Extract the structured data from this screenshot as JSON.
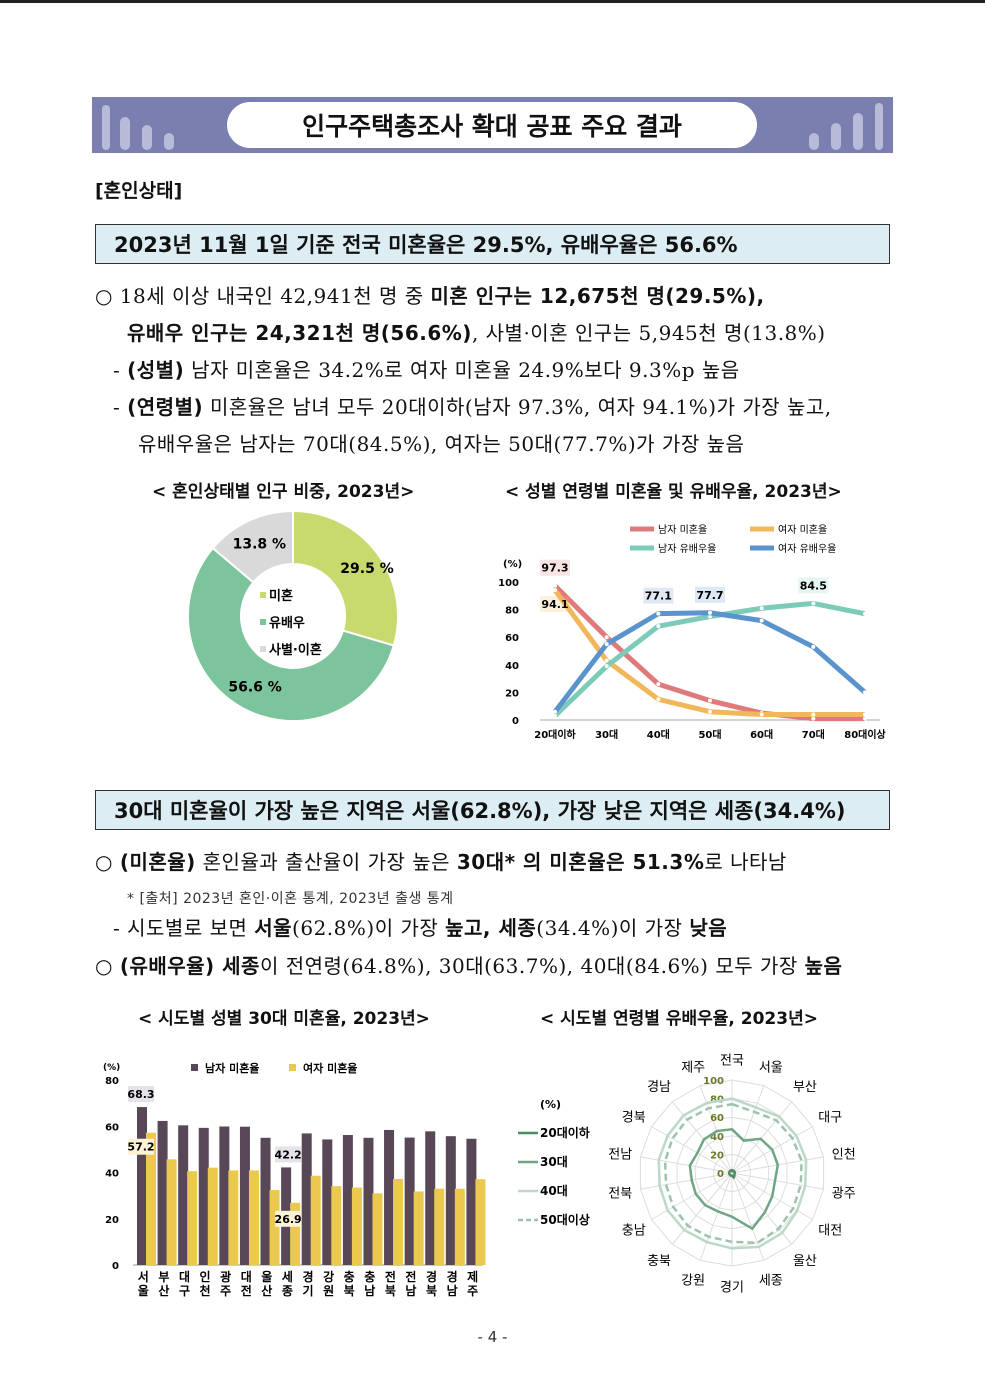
{
  "banner": {
    "title": "인구주택총조사 확대 공표 주요 결과"
  },
  "section": "[혼인상태]",
  "box1": "2023년 11월 1일 기준 전국 미혼율은 29.5%, 유배우율은 56.6%",
  "paras1": [
    [
      {
        "t": "○ 18세 이상 내국인 42,941천 명 중 "
      },
      {
        "t": "미혼 인구는 12,675천 명(29.5%),",
        "b": true
      }
    ],
    [
      {
        "t": "유배우 인구는 24,321천 명(56.6%)",
        "b": true
      },
      {
        "t": ", 사별·이혼 인구는 5,945천 명(13.8%)"
      }
    ],
    [
      {
        "t": "- "
      },
      {
        "t": "(성별)",
        "b": true
      },
      {
        "t": " 남자 미혼율은 34.2%로 여자 미혼율 24.9%보다 9.3%p 높음"
      }
    ],
    [
      {
        "t": "- "
      },
      {
        "t": "(연령별)",
        "b": true
      },
      {
        "t": " 미혼율은 남녀 모두 20대이하(남자 97.3%, 여자 94.1%)가 가장 높고,"
      }
    ],
    [
      {
        "t": "유배우율은 남자는 70대(84.5%), 여자는 50대(77.7%)가 가장 높음"
      }
    ]
  ],
  "box2": "30대 미혼율이 가장 높은 지역은 서울(62.8%), 가장 낮은 지역은 세종(34.4%)",
  "paras2": [
    [
      {
        "t": "○ "
      },
      {
        "t": "(미혼율)",
        "b": true
      },
      {
        "t": " 혼인율과 출산율이 가장 높은 "
      },
      {
        "t": "30대* 의 미혼율은 51.3%",
        "b": true
      },
      {
        "t": "로 나타남"
      }
    ],
    [
      {
        "t": "* [출처] 2023년 혼인·이혼 통계, 2023년 출생 통계",
        "s": true
      }
    ],
    [
      {
        "t": "- 시도별로 보면 "
      },
      {
        "t": "서울",
        "b": true
      },
      {
        "t": "(62.8%)이 가장 "
      },
      {
        "t": "높고, 세종",
        "b": true
      },
      {
        "t": "(34.4%)이 가장 "
      },
      {
        "t": "낮음",
        "b": true
      }
    ],
    [
      {
        "t": "○ "
      },
      {
        "t": "(유배우율) 세종",
        "b": true
      },
      {
        "t": "이 전연령(64.8%), 30대(63.7%), 40대(84.6%) 모두 가장 "
      },
      {
        "t": "높음",
        "b": true
      }
    ]
  ],
  "page_number": "- 4 -",
  "chart_data": [
    {
      "type": "pie",
      "title": "< 혼인상태별 인구 비중, 2023년>",
      "donut": true,
      "slices": [
        {
          "name": "미혼",
          "value": 29.5,
          "label": "29.5 %",
          "color": "#c8da6e"
        },
        {
          "name": "유배우",
          "value": 56.6,
          "label": "56.6 %",
          "color": "#7cc49b"
        },
        {
          "name": "사별·이혼",
          "value": 13.8,
          "label": "13.8 %",
          "color": "#d9d9d9"
        }
      ]
    },
    {
      "type": "line",
      "title": "< 성별 연령별 미혼율 및 유배우율, 2023년>",
      "ylabel": "(%)",
      "ylim": [
        0,
        100
      ],
      "yticks": [
        0,
        20,
        40,
        60,
        80,
        100
      ],
      "categories": [
        "20대이하",
        "30대",
        "40대",
        "50대",
        "60대",
        "70대",
        "80대이상"
      ],
      "series": [
        {
          "name": "남자 미혼율",
          "color": "#e07a7a",
          "values": [
            97.3,
            60,
            26,
            14,
            5,
            1,
            1
          ],
          "labels": {
            "0": "97.3"
          }
        },
        {
          "name": "여자 미혼율",
          "color": "#f0b85a",
          "values": [
            94.1,
            43,
            15,
            6,
            4,
            4,
            4
          ],
          "labels": {
            "0": "94.1"
          }
        },
        {
          "name": "남자 유배우율",
          "color": "#7ccbb8",
          "values": [
            3,
            39,
            68,
            75,
            81,
            84.5,
            77
          ],
          "labels": {
            "5": "84.5"
          }
        },
        {
          "name": "여자 유배우율",
          "color": "#5b93cc",
          "values": [
            6,
            55,
            77.1,
            77.7,
            72,
            53,
            20
          ],
          "labels": {
            "2": "77.1",
            "3": "77.7"
          }
        }
      ]
    },
    {
      "type": "bar",
      "title": "< 시도별 성별 30대 미혼율, 2023년>",
      "ylabel": "(%)",
      "ylim": [
        0,
        80
      ],
      "yticks": [
        0,
        20,
        40,
        60,
        80
      ],
      "categories": [
        "서울",
        "부산",
        "대구",
        "인천",
        "광주",
        "대전",
        "울산",
        "세종",
        "경기",
        "강원",
        "충북",
        "충남",
        "전북",
        "전남",
        "경북",
        "경남",
        "제주"
      ],
      "series": [
        {
          "name": "남자 미혼율",
          "color": "#574757",
          "values": [
            68.3,
            62.3,
            60.4,
            59.3,
            59.9,
            59.8,
            55,
            42.2,
            56.9,
            54.3,
            56.2,
            55,
            58.4,
            55.1,
            57.8,
            55.7,
            54.6
          ],
          "labels": {
            "0": "68.3",
            "7": "42.2"
          }
        },
        {
          "name": "여자 미혼율",
          "color": "#ebc94f",
          "values": [
            57.2,
            45.7,
            40.6,
            42.1,
            40.9,
            40.9,
            32.4,
            26.9,
            38.6,
            34.1,
            33.5,
            31,
            37.2,
            31.8,
            33,
            33,
            37.1
          ],
          "labels": {
            "0": "57.2",
            "7": "26.9"
          }
        }
      ]
    },
    {
      "type": "radar",
      "title": "< 시도별 연령별 유배우율, 2023년>",
      "unit": "(%)",
      "rlim": [
        0,
        100
      ],
      "rticks": [
        0,
        20,
        40,
        60,
        80,
        100
      ],
      "categories": [
        "전국",
        "서울",
        "부산",
        "대구",
        "인천",
        "광주",
        "대전",
        "울산",
        "세종",
        "경기",
        "강원",
        "충북",
        "충남",
        "전북",
        "전남",
        "경북",
        "경남",
        "제주"
      ],
      "series": [
        {
          "name": "20대이하",
          "color": "#4f8a66",
          "dash": false,
          "values": [
            3,
            2,
            3,
            3,
            3,
            3,
            3,
            4,
            5,
            3,
            3,
            3,
            3,
            3,
            3,
            3,
            3,
            3
          ]
        },
        {
          "name": "30대",
          "color": "#6fa585",
          "dash": false,
          "values": [
            47,
            37,
            48,
            50,
            50,
            47,
            50,
            55,
            63.7,
            47,
            44,
            45,
            45,
            44,
            46,
            43,
            47,
            48
          ]
        },
        {
          "name": "40대",
          "color": "#bcd8c7",
          "dash": false,
          "values": [
            80,
            75,
            79,
            80,
            81,
            80,
            81,
            84,
            84.6,
            81,
            79,
            80,
            80,
            79,
            80,
            80,
            81,
            80
          ]
        },
        {
          "name": "50대이상",
          "color": "#9cc4ac",
          "dash": true,
          "values": [
            74,
            70,
            74,
            75,
            76,
            75,
            76,
            78,
            80,
            74,
            73,
            74,
            73,
            72,
            73,
            74,
            75,
            74
          ]
        }
      ]
    }
  ]
}
